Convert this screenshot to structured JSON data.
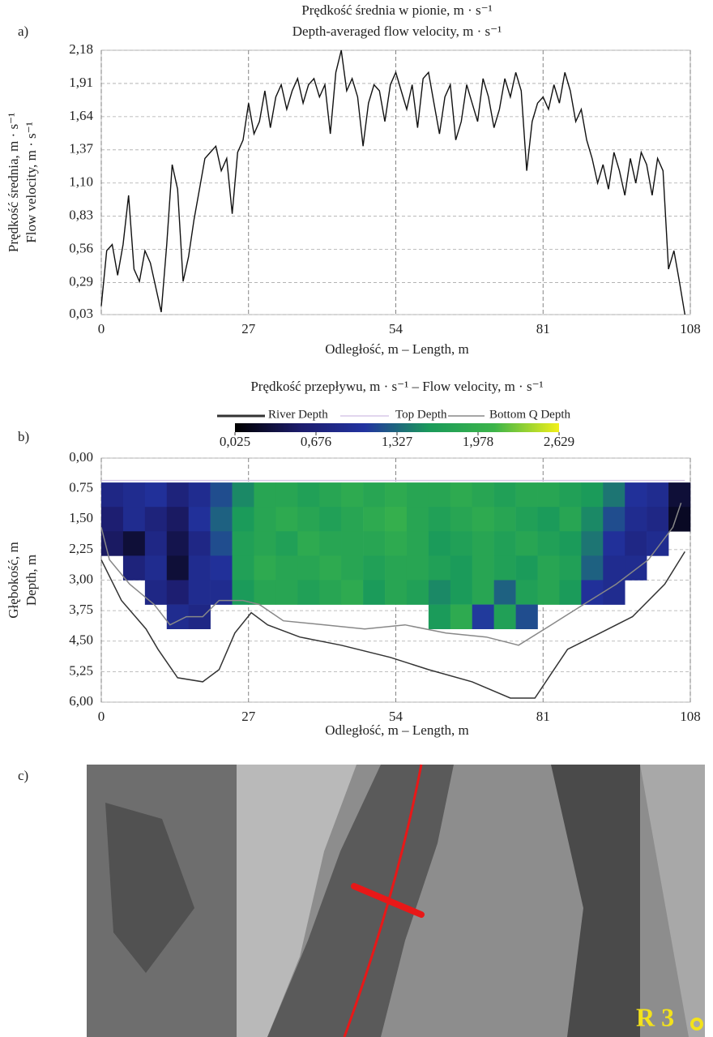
{
  "panel_labels": [
    "a)",
    "b)",
    "c)"
  ],
  "chart_data": [
    {
      "type": "line",
      "title": [
        "Prędkość średnia w pionie, m · s⁻¹",
        "Depth-averaged flow velocity, m · s⁻¹"
      ],
      "ylabel": [
        "Prędkość średnia, m · s⁻¹",
        "Flow velocity, m · s⁻¹"
      ],
      "xlabel": "Odległość, m – Length, m",
      "x": [
        0,
        1,
        2,
        3,
        4,
        5,
        6,
        7,
        8,
        9,
        10,
        11,
        12,
        13,
        14,
        15,
        16,
        17,
        18,
        19,
        20,
        21,
        22,
        23,
        24,
        25,
        26,
        27,
        28,
        29,
        30,
        31,
        32,
        33,
        34,
        35,
        36,
        37,
        38,
        39,
        40,
        41,
        42,
        43,
        44,
        45,
        46,
        47,
        48,
        49,
        50,
        51,
        52,
        53,
        54,
        55,
        56,
        57,
        58,
        59,
        60,
        61,
        62,
        63,
        64,
        65,
        66,
        67,
        68,
        69,
        70,
        71,
        72,
        73,
        74,
        75,
        76,
        77,
        78,
        79,
        80,
        81,
        82,
        83,
        84,
        85,
        86,
        87,
        88,
        89,
        90,
        91,
        92,
        93,
        94,
        95,
        96,
        97,
        98,
        99,
        100,
        101,
        102,
        103,
        104,
        105,
        106,
        107
      ],
      "values": [
        0.1,
        0.55,
        0.6,
        0.35,
        0.6,
        1.0,
        0.4,
        0.3,
        0.55,
        0.45,
        0.25,
        0.05,
        0.6,
        1.25,
        1.05,
        0.3,
        0.5,
        0.8,
        1.05,
        1.3,
        1.35,
        1.4,
        1.2,
        1.3,
        0.85,
        1.35,
        1.45,
        1.75,
        1.5,
        1.6,
        1.85,
        1.55,
        1.8,
        1.9,
        1.7,
        1.85,
        1.95,
        1.75,
        1.9,
        1.95,
        1.8,
        1.9,
        1.5,
        2.0,
        2.18,
        1.85,
        1.95,
        1.8,
        1.4,
        1.75,
        1.9,
        1.85,
        1.6,
        1.9,
        2.0,
        1.85,
        1.7,
        1.9,
        1.55,
        1.95,
        2.0,
        1.75,
        1.5,
        1.8,
        1.9,
        1.45,
        1.6,
        1.9,
        1.75,
        1.6,
        1.95,
        1.8,
        1.55,
        1.7,
        1.95,
        1.8,
        2.0,
        1.85,
        1.2,
        1.6,
        1.75,
        1.8,
        1.7,
        1.9,
        1.75,
        2.0,
        1.85,
        1.6,
        1.7,
        1.45,
        1.3,
        1.1,
        1.25,
        1.05,
        1.35,
        1.2,
        1.0,
        1.3,
        1.1,
        1.35,
        1.25,
        1.0,
        1.3,
        1.2,
        0.4,
        0.55,
        0.3,
        0.03
      ],
      "color": "#111111",
      "xlim": [
        0,
        108
      ],
      "xticks": [
        0,
        27,
        54,
        81,
        108
      ],
      "ylim": [
        0.03,
        2.18
      ],
      "yticks": [
        {
          "value": 0.03,
          "label": "0,03"
        },
        {
          "value": 0.29,
          "label": "0,29"
        },
        {
          "value": 0.56,
          "label": "0,56"
        },
        {
          "value": 0.83,
          "label": "0,83"
        },
        {
          "value": 1.1,
          "label": "1,10"
        },
        {
          "value": 1.37,
          "label": "1,37"
        },
        {
          "value": 1.64,
          "label": "1,64"
        },
        {
          "value": 1.91,
          "label": "1,91"
        },
        {
          "value": 2.18,
          "label": "2,18"
        }
      ],
      "grid": true
    },
    {
      "type": "heatmap",
      "title": "Prędkość przepływu, m · s⁻¹ – Flow velocity, m · s⁻¹",
      "ylabel": [
        "Głębokość, m",
        "Depth, m"
      ],
      "xlabel": "Odległość, m – Length, m",
      "x_edges": [
        0,
        4,
        8,
        12,
        16,
        20,
        24,
        28,
        32,
        36,
        40,
        44,
        48,
        52,
        56,
        60,
        64,
        68,
        72,
        76,
        80,
        84,
        88,
        92,
        96,
        100,
        104,
        108
      ],
      "y_edges": [
        0.6,
        1.2,
        1.8,
        2.4,
        3.0,
        3.6,
        4.2
      ],
      "z": [
        [
          0.8,
          0.9,
          1.0,
          0.7,
          0.9,
          1.2,
          1.5,
          1.8,
          1.8,
          1.7,
          1.8,
          1.9,
          1.8,
          1.9,
          1.8,
          1.8,
          1.9,
          1.8,
          1.7,
          1.8,
          1.8,
          1.7,
          1.6,
          1.4,
          1.0,
          0.9,
          0.3
        ],
        [
          0.6,
          0.9,
          0.7,
          0.5,
          1.0,
          1.3,
          1.6,
          1.8,
          1.9,
          1.8,
          1.7,
          1.8,
          1.9,
          2.0,
          1.8,
          1.7,
          1.8,
          1.9,
          1.8,
          1.7,
          1.6,
          1.8,
          1.5,
          1.2,
          0.9,
          0.8,
          0.2
        ],
        [
          0.5,
          0.3,
          0.8,
          0.4,
          0.8,
          1.2,
          1.7,
          1.8,
          1.7,
          1.9,
          1.8,
          1.8,
          1.8,
          1.9,
          1.8,
          1.6,
          1.7,
          1.8,
          1.7,
          1.8,
          1.7,
          1.6,
          1.4,
          1.0,
          0.8,
          0.9,
          null
        ],
        [
          null,
          0.7,
          0.9,
          0.3,
          0.9,
          1.0,
          1.7,
          1.9,
          1.8,
          1.8,
          1.9,
          1.8,
          1.7,
          1.8,
          1.8,
          1.7,
          1.6,
          1.8,
          1.7,
          1.6,
          1.8,
          1.7,
          1.3,
          0.9,
          0.9,
          null,
          null
        ],
        [
          null,
          null,
          0.8,
          0.6,
          0.9,
          0.9,
          1.6,
          1.8,
          1.8,
          1.7,
          1.8,
          1.9,
          1.6,
          1.8,
          1.7,
          1.5,
          1.6,
          1.8,
          1.3,
          1.7,
          1.8,
          1.6,
          1.0,
          0.9,
          null,
          null,
          null
        ],
        [
          null,
          null,
          null,
          0.9,
          0.8,
          null,
          null,
          null,
          null,
          null,
          null,
          null,
          null,
          null,
          null,
          1.6,
          1.9,
          1.1,
          1.7,
          1.2,
          null,
          null,
          null,
          null,
          null,
          null,
          null
        ]
      ],
      "zlim": [
        0.025,
        2.629
      ],
      "zticks": [
        {
          "value": 0.025,
          "label": "0,025"
        },
        {
          "value": 0.676,
          "label": "0,676"
        },
        {
          "value": 1.327,
          "label": "1,327"
        },
        {
          "value": 1.978,
          "label": "1,978"
        },
        {
          "value": 2.629,
          "label": "2,629"
        }
      ],
      "colorscale": [
        "#000000",
        "#1c1c6b",
        "#2233a0",
        "#1a9a5a",
        "#3cb44a",
        "#f2f01a"
      ],
      "series": [
        {
          "name": "River Depth",
          "color": "#333333",
          "x": [
            0,
            3.7,
            8.2,
            10.4,
            14,
            18.6,
            21.6,
            24.5,
            27.5,
            30.5,
            36.4,
            44,
            53,
            60,
            68,
            75,
            79.5,
            82.5,
            85.5,
            91.5,
            97.4,
            103.3,
            107
          ],
          "values": [
            2.5,
            3.5,
            4.2,
            4.7,
            5.4,
            5.5,
            5.2,
            4.3,
            3.8,
            4.1,
            4.4,
            4.6,
            4.9,
            5.2,
            5.5,
            5.9,
            5.9,
            5.3,
            4.7,
            4.3,
            3.9,
            3.1,
            2.3
          ]
        },
        {
          "name": "Top Depth",
          "color": "#d8c8e8",
          "x": [
            0,
            107
          ],
          "values": [
            0.55,
            0.55
          ]
        },
        {
          "name": "Bottom Q Depth",
          "color": "#888888",
          "x": [
            0,
            1.5,
            5.2,
            9.7,
            12.6,
            15.6,
            18.6,
            21.6,
            26,
            29,
            33.4,
            41,
            48.3,
            55.7,
            63.2,
            70.6,
            76.5,
            82.5,
            88.4,
            94.4,
            100.3,
            104.8,
            106.3
          ],
          "values": [
            1.7,
            2.5,
            3.1,
            3.6,
            4.1,
            3.9,
            3.9,
            3.5,
            3.5,
            3.6,
            4.0,
            4.1,
            4.2,
            4.1,
            4.3,
            4.4,
            4.6,
            4.1,
            3.6,
            3.1,
            2.5,
            1.7,
            1.1
          ]
        }
      ],
      "xlim": [
        0,
        108
      ],
      "xticks": [
        0,
        27,
        54,
        81,
        108
      ],
      "ylim": [
        0,
        6
      ],
      "y_reversed": true,
      "yticks": [
        {
          "value": 0,
          "label": "0,00"
        },
        {
          "value": 0.75,
          "label": "0.75"
        },
        {
          "value": 1.5,
          "label": "1,50"
        },
        {
          "value": 2.25,
          "label": "2,25"
        },
        {
          "value": 3,
          "label": "3,00"
        },
        {
          "value": 3.75,
          "label": "3,75"
        },
        {
          "value": 4.5,
          "label": "4,50"
        },
        {
          "value": 5.25,
          "label": "5,25"
        },
        {
          "value": 6,
          "label": "6,00"
        }
      ],
      "grid": true
    }
  ],
  "photo": {
    "label": "R 3"
  }
}
